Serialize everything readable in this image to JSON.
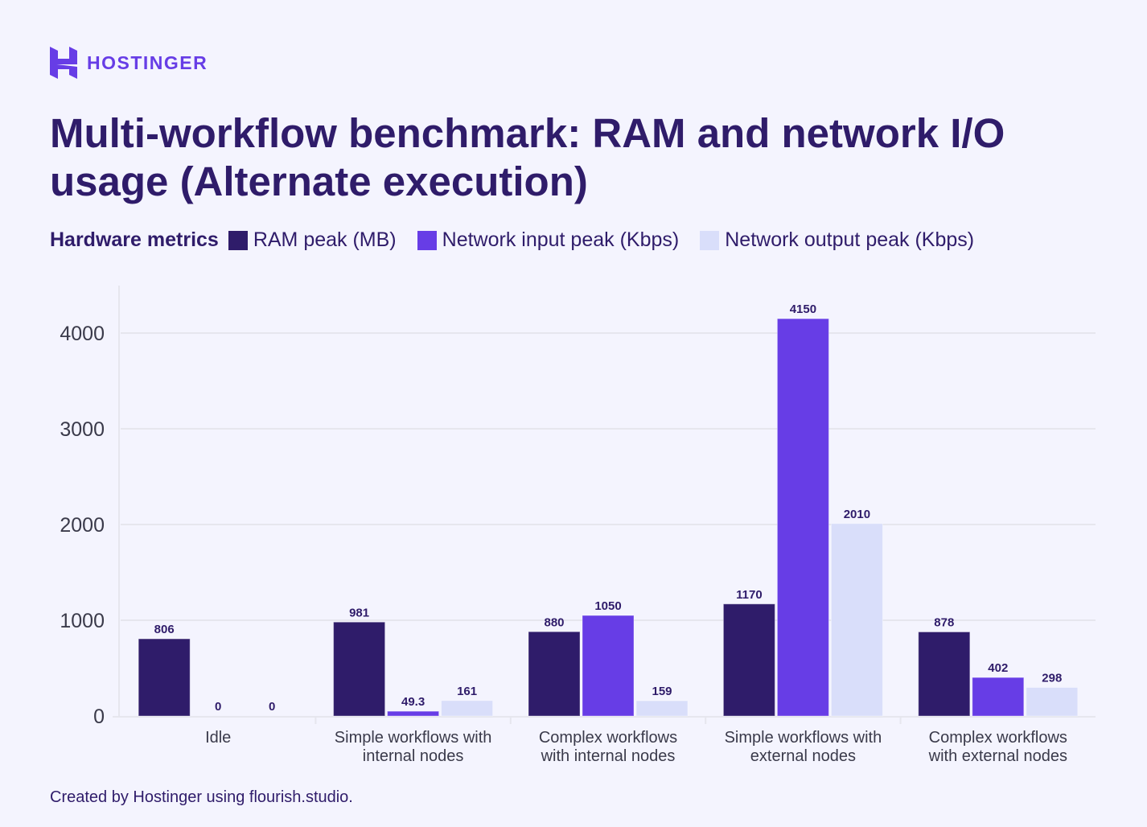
{
  "brand": {
    "name": "HOSTINGER",
    "color": "#673de6"
  },
  "title": "Multi-workflow benchmark: RAM and network I/O usage (Alternate execution)",
  "footer": "Created by Hostinger using flourish.studio.",
  "chart_data": {
    "type": "bar",
    "legend_title": "Hardware metrics",
    "legend_position": "top-left",
    "categories": [
      "Idle",
      "Simple workflows with internal nodes",
      "Complex workflows with internal nodes",
      "Simple workflows with external nodes",
      "Complex workflows with external nodes"
    ],
    "category_lines": [
      [
        "Idle"
      ],
      [
        "Simple workflows with",
        "internal nodes"
      ],
      [
        "Complex workflows",
        "with internal nodes"
      ],
      [
        "Simple workflows with",
        "external nodes"
      ],
      [
        "Complex workflows",
        "with external nodes"
      ]
    ],
    "series": [
      {
        "name": "RAM peak (MB)",
        "color": "#2f1c6a",
        "values": [
          806,
          981,
          880,
          1170,
          878
        ],
        "labels": [
          "806",
          "981",
          "880",
          "1170",
          "878"
        ]
      },
      {
        "name": "Network input peak (Kbps)",
        "color": "#673de6",
        "values": [
          0,
          49.3,
          1050,
          4150,
          402
        ],
        "labels": [
          "0",
          "49.3",
          "1050",
          "4150",
          "402"
        ]
      },
      {
        "name": "Network output peak (Kbps)",
        "color": "#d9defa",
        "values": [
          0,
          161,
          159,
          2010,
          298
        ],
        "labels": [
          "0",
          "161",
          "159",
          "2010",
          "298"
        ]
      }
    ],
    "ylim": [
      0,
      4500
    ],
    "yticks": [
      0,
      1000,
      2000,
      3000,
      4000
    ],
    "ytick_labels": [
      "0",
      "1000",
      "2000",
      "3000",
      "4000"
    ],
    "grid": true
  }
}
